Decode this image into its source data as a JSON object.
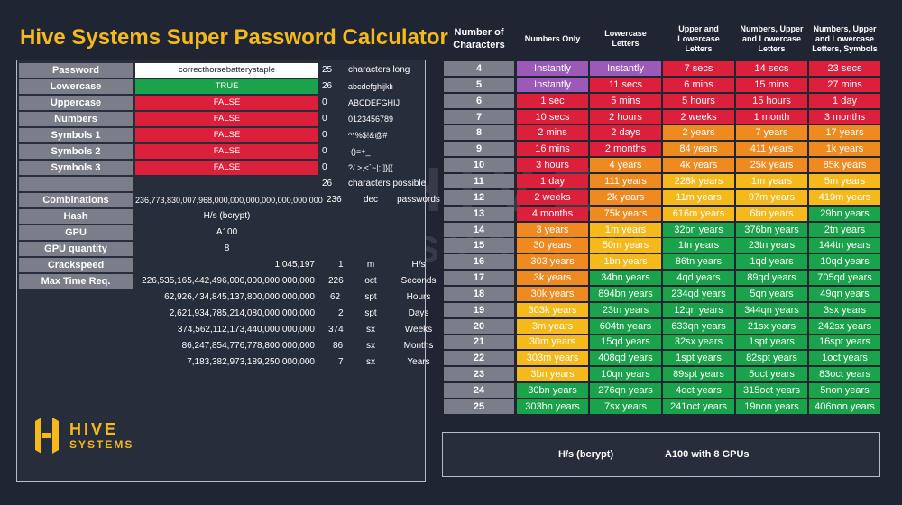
{
  "title": "Hive Systems Super Password Calculator",
  "logo": {
    "line1": "HIVE",
    "line2": "SYSTEMS"
  },
  "watermark": {
    "line1": "HIVE",
    "line2": "SYSTEMS"
  },
  "calc": {
    "password": {
      "label": "Password",
      "value": "correcthorsebatterystaple",
      "num": "25",
      "note": "characters long"
    },
    "lowercase": {
      "label": "Lowercase",
      "value": "TRUE",
      "num": "26",
      "note": "abcdefghijklı"
    },
    "uppercase": {
      "label": "Uppercase",
      "value": "FALSE",
      "num": "0",
      "note": "ABCDEFGHIJ"
    },
    "numbers": {
      "label": "Numbers",
      "value": "FALSE",
      "num": "0",
      "note": "0123456789"
    },
    "symbols1": {
      "label": "Symbols 1",
      "value": "FALSE",
      "num": "0",
      "note": "^*%$!&@#"
    },
    "symbols2": {
      "label": "Symbols 2",
      "value": "FALSE",
      "num": "0",
      "note": "-()=+_"
    },
    "symbols3": {
      "label": "Symbols 3",
      "value": "FALSE",
      "num": "0",
      "note": "?/.>,<`~|;:]}[{"
    },
    "possible": {
      "num": "26",
      "note": "characters possible"
    },
    "combinations": {
      "label": "Combinations",
      "value": "236,773,830,007,968,000,000,000,000,000,000,000",
      "num": "236",
      "unit": "dec",
      "unit2": "passwords"
    },
    "hash": {
      "label": "Hash",
      "value": "H/s (bcrypt)"
    },
    "gpu": {
      "label": "GPU",
      "value": "A100"
    },
    "gpu_qty": {
      "label": "GPU quantity",
      "value": "8"
    },
    "crackspeed": {
      "label": "Crackspeed",
      "value": "1,045,197",
      "num": "1",
      "unit": "m",
      "unit2": "H/s"
    },
    "maxtime": {
      "label": "Max Time Req.",
      "value": "226,535,165,442,496,000,000,000,000,000",
      "num": "226",
      "unit": "oct",
      "unit2": "Seconds"
    },
    "hours": {
      "value": "62,926,434,845,137,800,000,000,000",
      "num": "62",
      "unit": "spt",
      "unit2": "Hours"
    },
    "days": {
      "value": "2,621,934,785,214,080,000,000,000",
      "num": "2",
      "unit": "spt",
      "unit2": "Days"
    },
    "weeks": {
      "value": "374,562,112,173,440,000,000,000",
      "num": "374",
      "unit": "sx",
      "unit2": "Weeks"
    },
    "months": {
      "value": "86,247,854,776,778,800,000,000",
      "num": "86",
      "unit": "sx",
      "unit2": "Months"
    },
    "years": {
      "value": "7,183,382,973,189,250,000,000",
      "num": "7",
      "unit": "sx",
      "unit2": "Years"
    }
  },
  "table": {
    "headers": [
      "Number of Characters",
      "Numbers Only",
      "Lowercase Letters",
      "Upper and Lowercase Letters",
      "Numbers, Upper and Lowercase Letters",
      "Numbers, Upper and Lowercase Letters, Symbols"
    ],
    "rows": [
      {
        "n": "4",
        "cells": [
          [
            "Instantly",
            "purple"
          ],
          [
            "Instantly",
            "purple"
          ],
          [
            "7 secs",
            "red"
          ],
          [
            "14 secs",
            "red"
          ],
          [
            "23 secs",
            "red"
          ]
        ]
      },
      {
        "n": "5",
        "cells": [
          [
            "Instantly",
            "purple"
          ],
          [
            "11 secs",
            "red"
          ],
          [
            "6 mins",
            "red"
          ],
          [
            "15 mins",
            "red"
          ],
          [
            "27 mins",
            "red"
          ]
        ]
      },
      {
        "n": "6",
        "cells": [
          [
            "1 sec",
            "red"
          ],
          [
            "5 mins",
            "red"
          ],
          [
            "5 hours",
            "red"
          ],
          [
            "15 hours",
            "red"
          ],
          [
            "1 day",
            "red"
          ]
        ]
      },
      {
        "n": "7",
        "cells": [
          [
            "10 secs",
            "red"
          ],
          [
            "2 hours",
            "red"
          ],
          [
            "2 weeks",
            "red"
          ],
          [
            "1 month",
            "red"
          ],
          [
            "3 months",
            "red"
          ]
        ]
      },
      {
        "n": "8",
        "cells": [
          [
            "2 mins",
            "red"
          ],
          [
            "2 days",
            "red"
          ],
          [
            "2 years",
            "orange"
          ],
          [
            "7 years",
            "orange"
          ],
          [
            "17 years",
            "orange"
          ]
        ]
      },
      {
        "n": "9",
        "cells": [
          [
            "16 mins",
            "red"
          ],
          [
            "2 months",
            "red"
          ],
          [
            "84 years",
            "orange"
          ],
          [
            "411 years",
            "orange"
          ],
          [
            "1k years",
            "orange"
          ]
        ]
      },
      {
        "n": "10",
        "cells": [
          [
            "3 hours",
            "red"
          ],
          [
            "4 years",
            "orange"
          ],
          [
            "4k years",
            "orange"
          ],
          [
            "25k years",
            "orange"
          ],
          [
            "85k years",
            "orange"
          ]
        ]
      },
      {
        "n": "11",
        "cells": [
          [
            "1 day",
            "red"
          ],
          [
            "111 years",
            "orange"
          ],
          [
            "228k years",
            "yellow"
          ],
          [
            "1m years",
            "yellow"
          ],
          [
            "5m years",
            "yellow"
          ]
        ]
      },
      {
        "n": "12",
        "cells": [
          [
            "2 weeks",
            "red"
          ],
          [
            "2k years",
            "orange"
          ],
          [
            "11m years",
            "yellow"
          ],
          [
            "97m years",
            "yellow"
          ],
          [
            "419m years",
            "yellow"
          ]
        ]
      },
      {
        "n": "13",
        "cells": [
          [
            "4 months",
            "red"
          ],
          [
            "75k years",
            "orange"
          ],
          [
            "616m years",
            "yellow"
          ],
          [
            "6bn years",
            "yellow"
          ],
          [
            "29bn years",
            "green"
          ]
        ]
      },
      {
        "n": "14",
        "cells": [
          [
            "3 years",
            "orange"
          ],
          [
            "1m years",
            "yellow"
          ],
          [
            "32bn years",
            "green"
          ],
          [
            "376bn years",
            "green"
          ],
          [
            "2tn years",
            "green"
          ]
        ]
      },
      {
        "n": "15",
        "cells": [
          [
            "30 years",
            "orange"
          ],
          [
            "50m years",
            "yellow"
          ],
          [
            "1tn years",
            "green"
          ],
          [
            "23tn years",
            "green"
          ],
          [
            "144tn years",
            "green"
          ]
        ]
      },
      {
        "n": "16",
        "cells": [
          [
            "303 years",
            "orange"
          ],
          [
            "1bn years",
            "yellow"
          ],
          [
            "86tn years",
            "green"
          ],
          [
            "1qd years",
            "green"
          ],
          [
            "10qd years",
            "green"
          ]
        ]
      },
      {
        "n": "17",
        "cells": [
          [
            "3k years",
            "orange"
          ],
          [
            "34bn years",
            "green"
          ],
          [
            "4qd years",
            "green"
          ],
          [
            "89qd years",
            "green"
          ],
          [
            "705qd years",
            "green"
          ]
        ]
      },
      {
        "n": "18",
        "cells": [
          [
            "30k years",
            "orange"
          ],
          [
            "894bn years",
            "green"
          ],
          [
            "234qd years",
            "green"
          ],
          [
            "5qn years",
            "green"
          ],
          [
            "49qn years",
            "green"
          ]
        ]
      },
      {
        "n": "19",
        "cells": [
          [
            "303k years",
            "yellow"
          ],
          [
            "23tn years",
            "green"
          ],
          [
            "12qn years",
            "green"
          ],
          [
            "344qn years",
            "green"
          ],
          [
            "3sx years",
            "green"
          ]
        ]
      },
      {
        "n": "20",
        "cells": [
          [
            "3m years",
            "yellow"
          ],
          [
            "604tn years",
            "green"
          ],
          [
            "633qn years",
            "green"
          ],
          [
            "21sx years",
            "green"
          ],
          [
            "242sx years",
            "green"
          ]
        ]
      },
      {
        "n": "21",
        "cells": [
          [
            "30m years",
            "yellow"
          ],
          [
            "15qd years",
            "green"
          ],
          [
            "32sx years",
            "green"
          ],
          [
            "1spt years",
            "green"
          ],
          [
            "16spt years",
            "green"
          ]
        ]
      },
      {
        "n": "22",
        "cells": [
          [
            "303m years",
            "yellow"
          ],
          [
            "408qd years",
            "green"
          ],
          [
            "1spt years",
            "green"
          ],
          [
            "82spt years",
            "green"
          ],
          [
            "1oct years",
            "green"
          ]
        ]
      },
      {
        "n": "23",
        "cells": [
          [
            "3bn years",
            "yellow"
          ],
          [
            "10qn years",
            "green"
          ],
          [
            "89spt years",
            "green"
          ],
          [
            "5oct years",
            "green"
          ],
          [
            "83oct years",
            "green"
          ]
        ]
      },
      {
        "n": "24",
        "cells": [
          [
            "30bn years",
            "green"
          ],
          [
            "276qn years",
            "green"
          ],
          [
            "4oct years",
            "green"
          ],
          [
            "315oct years",
            "green"
          ],
          [
            "5non years",
            "green"
          ]
        ]
      },
      {
        "n": "25",
        "cells": [
          [
            "303bn years",
            "green"
          ],
          [
            "7sx years",
            "green"
          ],
          [
            "241oct years",
            "green"
          ],
          [
            "19non years",
            "green"
          ],
          [
            "406non years",
            "green"
          ]
        ]
      }
    ]
  },
  "footer": {
    "hash": "H/s (bcrypt)",
    "gpu": "A100 with 8 GPUs"
  }
}
